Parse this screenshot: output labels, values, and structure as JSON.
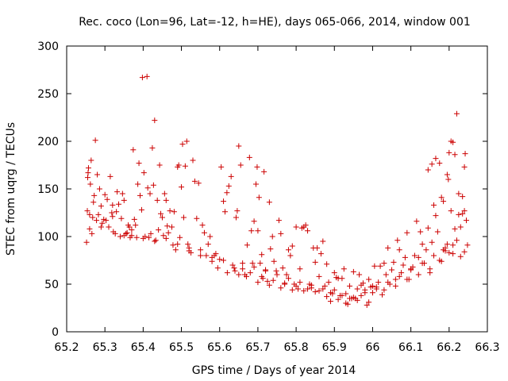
{
  "chart_data": {
    "type": "scatter",
    "title": "Rec. coco (Lon=96, Lat=-12, h=HE), days 065-066, 2014, window 001",
    "xlabel": "GPS time / Days of year 2014",
    "ylabel": "STEC from uqrg / TECUs",
    "xlim": [
      65.2,
      66.3
    ],
    "ylim": [
      0,
      300
    ],
    "x_ticks": [
      "65.2",
      "65.3",
      "65.4",
      "65.5",
      "65.6",
      "65.7",
      "65.8",
      "65.9",
      "66",
      "66.1",
      "66.2",
      "66.3"
    ],
    "y_ticks": [
      "0",
      "50",
      "100",
      "150",
      "200",
      "250",
      "300"
    ],
    "grid": false,
    "marker": "+",
    "marker_color": "#cc0000",
    "series": [
      {
        "points": [
          [
            65.252,
            94
          ],
          [
            65.254,
            127
          ],
          [
            65.255,
            162
          ],
          [
            65.256,
            167
          ],
          [
            65.257,
            172
          ],
          [
            65.26,
            123
          ],
          [
            65.262,
            155
          ],
          [
            65.264,
            180
          ],
          [
            65.266,
            103
          ],
          [
            65.268,
            120
          ],
          [
            65.27,
            136
          ],
          [
            65.272,
            143
          ],
          [
            65.275,
            201
          ],
          [
            65.278,
            117
          ],
          [
            65.28,
            165
          ],
          [
            65.283,
            123
          ],
          [
            65.286,
            150
          ],
          [
            65.29,
            132
          ],
          [
            65.293,
            114
          ],
          [
            65.297,
            118
          ],
          [
            65.3,
            144
          ],
          [
            65.303,
            117
          ],
          [
            65.306,
            139
          ],
          [
            65.31,
            110
          ],
          [
            65.314,
            163
          ],
          [
            65.318,
            125
          ],
          [
            65.32,
            133
          ],
          [
            65.322,
            105
          ],
          [
            65.327,
            103
          ],
          [
            65.33,
            126
          ],
          [
            65.332,
            147
          ],
          [
            65.336,
            134
          ],
          [
            65.34,
            100
          ],
          [
            65.343,
            119
          ],
          [
            65.346,
            145
          ],
          [
            65.35,
            138
          ],
          [
            65.355,
            103
          ],
          [
            65.358,
            104
          ],
          [
            65.361,
            112
          ],
          [
            65.364,
            110
          ],
          [
            65.366,
            99
          ],
          [
            65.37,
            107
          ],
          [
            65.374,
            191
          ],
          [
            65.377,
            118
          ],
          [
            65.38,
            112
          ],
          [
            65.383,
            99
          ],
          [
            65.386,
            155
          ],
          [
            65.389,
            177
          ],
          [
            65.392,
            143
          ],
          [
            65.396,
            128
          ],
          [
            65.398,
            267
          ],
          [
            65.402,
            167
          ],
          [
            65.405,
            100
          ],
          [
            65.41,
            268
          ],
          [
            65.412,
            151
          ],
          [
            65.415,
            99
          ],
          [
            65.418,
            145
          ],
          [
            65.42,
            103
          ],
          [
            65.424,
            193
          ],
          [
            65.427,
            154
          ],
          [
            65.43,
            222
          ],
          [
            65.433,
            96
          ],
          [
            65.437,
            138
          ],
          [
            65.44,
            107
          ],
          [
            65.443,
            175
          ],
          [
            65.446,
            124
          ],
          [
            65.45,
            120
          ],
          [
            65.453,
            101
          ],
          [
            65.456,
            145
          ],
          [
            65.46,
            138
          ],
          [
            65.463,
            111
          ],
          [
            65.466,
            104
          ],
          [
            65.47,
            127
          ],
          [
            65.475,
            110
          ],
          [
            65.478,
            91
          ],
          [
            65.481,
            126
          ],
          [
            65.485,
            86
          ],
          [
            65.49,
            173
          ],
          [
            65.493,
            175
          ],
          [
            65.496,
            99
          ],
          [
            65.5,
            152
          ],
          [
            65.503,
            197
          ],
          [
            65.506,
            120
          ],
          [
            65.51,
            174
          ],
          [
            65.514,
            200
          ],
          [
            65.517,
            92
          ],
          [
            65.52,
            85
          ],
          [
            65.525,
            83
          ],
          [
            65.53,
            180
          ],
          [
            65.535,
            158
          ],
          [
            65.54,
            119
          ],
          [
            65.545,
            156
          ],
          [
            65.55,
            86
          ],
          [
            65.555,
            112
          ],
          [
            65.56,
            104
          ],
          [
            65.565,
            80
          ],
          [
            65.57,
            92
          ],
          [
            65.575,
            100
          ],
          [
            65.58,
            78
          ],
          [
            65.586,
            80
          ],
          [
            65.59,
            82
          ],
          [
            65.595,
            67
          ],
          [
            65.6,
            76
          ],
          [
            65.604,
            173
          ],
          [
            65.61,
            137
          ],
          [
            65.614,
            126
          ],
          [
            65.619,
            146
          ],
          [
            65.624,
            153
          ],
          [
            65.63,
            163
          ],
          [
            65.634,
            70
          ],
          [
            65.638,
            67
          ],
          [
            65.643,
            120
          ],
          [
            65.646,
            127
          ],
          [
            65.65,
            195
          ],
          [
            65.655,
            175
          ],
          [
            65.66,
            66
          ],
          [
            65.666,
            60
          ],
          [
            65.672,
            91
          ],
          [
            65.678,
            183
          ],
          [
            65.683,
            106
          ],
          [
            65.686,
            72
          ],
          [
            65.69,
            116
          ],
          [
            65.695,
            155
          ],
          [
            65.698,
            173
          ],
          [
            65.7,
            106
          ],
          [
            65.703,
            141
          ],
          [
            65.706,
            72
          ],
          [
            65.71,
            81
          ],
          [
            65.713,
            56
          ],
          [
            65.716,
            168
          ],
          [
            65.72,
            65
          ],
          [
            65.725,
            53
          ],
          [
            65.73,
            136
          ],
          [
            65.733,
            87
          ],
          [
            65.738,
            100
          ],
          [
            65.742,
            74
          ],
          [
            65.748,
            64
          ],
          [
            65.755,
            117
          ],
          [
            65.76,
            103
          ],
          [
            65.765,
            67
          ],
          [
            65.77,
            50
          ],
          [
            65.775,
            60
          ],
          [
            65.78,
            86
          ],
          [
            65.785,
            80
          ],
          [
            65.79,
            90
          ],
          [
            65.795,
            50
          ],
          [
            65.8,
            110
          ],
          [
            65.805,
            45
          ],
          [
            65.81,
            66
          ],
          [
            65.815,
            109
          ],
          [
            65.82,
            110
          ],
          [
            65.825,
            112
          ],
          [
            65.83,
            106
          ],
          [
            65.835,
            50
          ],
          [
            65.84,
            46
          ],
          [
            65.845,
            88
          ],
          [
            65.85,
            73
          ],
          [
            65.855,
            88
          ],
          [
            65.86,
            58
          ],
          [
            65.865,
            82
          ],
          [
            65.87,
            95
          ],
          [
            65.875,
            48
          ],
          [
            65.88,
            71
          ],
          [
            65.885,
            52
          ],
          [
            65.89,
            32
          ],
          [
            65.895,
            40
          ],
          [
            65.9,
            62
          ],
          [
            65.905,
            57
          ],
          [
            65.91,
            56
          ],
          [
            65.915,
            38
          ],
          [
            65.92,
            56
          ],
          [
            65.925,
            66
          ],
          [
            65.93,
            30
          ],
          [
            65.935,
            29
          ],
          [
            65.94,
            48
          ],
          [
            65.945,
            35
          ],
          [
            65.95,
            63
          ],
          [
            65.955,
            35
          ],
          [
            65.96,
            45
          ],
          [
            65.965,
            60
          ],
          [
            65.97,
            49
          ],
          [
            65.975,
            51
          ],
          [
            65.98,
            44
          ],
          [
            65.985,
            28
          ],
          [
            65.99,
            55
          ],
          [
            65.995,
            47
          ],
          [
            66.0,
            48
          ],
          [
            66.005,
            69
          ],
          [
            66.01,
            45
          ],
          [
            66.015,
            52
          ],
          [
            66.02,
            69
          ],
          [
            66.025,
            39
          ],
          [
            66.03,
            72
          ],
          [
            66.035,
            60
          ],
          [
            66.04,
            88
          ],
          [
            66.045,
            50
          ],
          [
            66.05,
            65
          ],
          [
            66.055,
            73
          ],
          [
            66.06,
            55
          ],
          [
            66.065,
            96
          ],
          [
            66.07,
            86
          ],
          [
            66.075,
            62
          ],
          [
            66.08,
            70
          ],
          [
            66.085,
            78
          ],
          [
            66.09,
            104
          ],
          [
            66.095,
            55
          ],
          [
            66.1,
            66
          ],
          [
            66.105,
            68
          ],
          [
            66.11,
            80
          ],
          [
            66.115,
            116
          ],
          [
            66.12,
            78
          ],
          [
            66.125,
            105
          ],
          [
            66.13,
            92
          ],
          [
            66.135,
            72
          ],
          [
            66.14,
            86
          ],
          [
            66.145,
            109
          ],
          [
            66.15,
            62
          ],
          [
            66.155,
            94
          ],
          [
            66.16,
            133
          ],
          [
            66.165,
            122
          ],
          [
            66.17,
            105
          ],
          [
            66.175,
            75
          ],
          [
            66.18,
            141
          ],
          [
            66.185,
            86
          ],
          [
            66.19,
            88
          ],
          [
            66.195,
            92
          ],
          [
            66.2,
            83
          ],
          [
            66.205,
            127
          ],
          [
            66.21,
            91
          ],
          [
            66.215,
            108
          ],
          [
            66.22,
            96
          ],
          [
            66.225,
            123
          ],
          [
            66.23,
            79
          ],
          [
            66.235,
            142
          ],
          [
            66.24,
            173
          ],
          [
            66.242,
            187
          ],
          [
            66.145,
            170
          ],
          [
            66.155,
            176
          ],
          [
            66.165,
            182
          ],
          [
            66.175,
            177
          ],
          [
            66.185,
            137
          ],
          [
            66.195,
            165
          ],
          [
            66.198,
            160
          ],
          [
            66.2,
            188
          ],
          [
            66.205,
            200
          ],
          [
            66.21,
            199
          ],
          [
            66.215,
            186
          ],
          [
            66.22,
            229
          ],
          [
            66.225,
            145
          ],
          [
            66.23,
            110
          ],
          [
            66.235,
            124
          ],
          [
            66.24,
            127
          ],
          [
            66.245,
            117
          ],
          [
            66.248,
            91
          ],
          [
            65.26,
            108
          ],
          [
            65.29,
            110
          ],
          [
            65.32,
            121
          ],
          [
            65.35,
            101
          ],
          [
            65.37,
            101
          ],
          [
            65.4,
            98
          ],
          [
            65.43,
            95
          ],
          [
            65.46,
            98
          ],
          [
            65.49,
            92
          ],
          [
            65.52,
            88
          ],
          [
            65.55,
            80
          ],
          [
            65.58,
            74
          ],
          [
            65.61,
            75
          ],
          [
            65.64,
            64
          ],
          [
            65.67,
            58
          ],
          [
            65.7,
            52
          ],
          [
            65.73,
            49
          ],
          [
            65.76,
            46
          ],
          [
            65.79,
            44
          ],
          [
            65.82,
            43
          ],
          [
            65.85,
            42
          ],
          [
            65.88,
            37
          ],
          [
            65.91,
            34
          ],
          [
            65.94,
            35
          ],
          [
            65.97,
            38
          ],
          [
            66.0,
            41
          ],
          [
            66.03,
            44
          ],
          [
            66.06,
            48
          ],
          [
            66.09,
            55
          ],
          [
            66.12,
            60
          ],
          [
            66.15,
            66
          ],
          [
            66.18,
            74
          ],
          [
            66.21,
            82
          ],
          [
            66.24,
            84
          ],
          [
            65.62,
            62
          ],
          [
            65.65,
            60
          ],
          [
            65.68,
            62
          ],
          [
            65.71,
            58
          ],
          [
            65.74,
            54
          ],
          [
            65.77,
            51
          ],
          [
            65.8,
            48
          ],
          [
            65.83,
            45
          ],
          [
            65.86,
            43
          ],
          [
            65.89,
            41
          ],
          [
            65.92,
            38
          ],
          [
            65.95,
            36
          ],
          [
            65.98,
            41
          ],
          [
            66.01,
            47
          ],
          [
            66.04,
            52
          ],
          [
            66.07,
            58
          ],
          [
            66.1,
            65
          ],
          [
            66.13,
            72
          ],
          [
            66.16,
            80
          ],
          [
            66.19,
            85
          ],
          [
            65.66,
            72
          ],
          [
            65.69,
            68
          ],
          [
            65.72,
            64
          ],
          [
            65.75,
            60
          ],
          [
            65.78,
            56
          ],
          [
            65.81,
            52
          ],
          [
            65.84,
            49
          ],
          [
            65.87,
            45
          ],
          [
            65.9,
            44
          ],
          [
            65.93,
            40
          ],
          [
            65.96,
            33
          ],
          [
            65.99,
            31
          ]
        ]
      }
    ]
  }
}
